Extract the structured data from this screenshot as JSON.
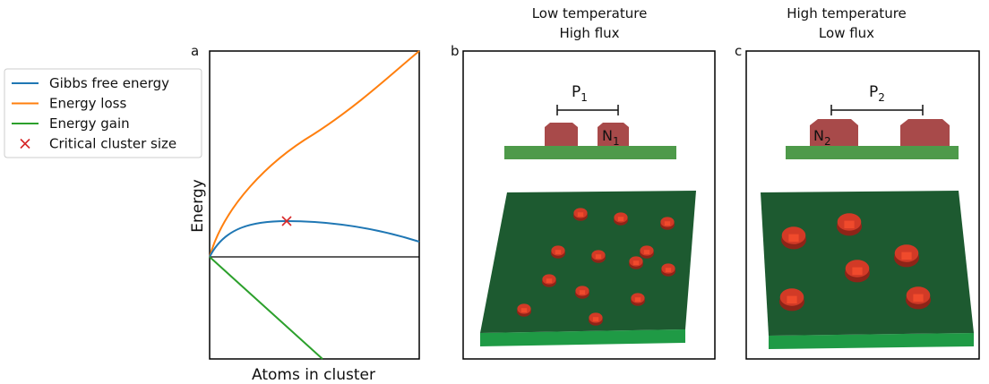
{
  "chart_data": {
    "type": "line",
    "panel_label": "a",
    "xlabel": "Atoms in cluster",
    "ylabel": "Energy",
    "series": [
      {
        "name": "Gibbs free energy",
        "color": "#1f77b4"
      },
      {
        "name": "Energy loss",
        "color": "#ff7f0e"
      },
      {
        "name": "Energy gain",
        "color": "#2ca02c"
      }
    ],
    "marker": {
      "name": "Critical cluster size",
      "color": "#d62728"
    }
  },
  "panel_b": {
    "label": "b",
    "title": [
      "Low temperature",
      "High flux"
    ],
    "spacing": {
      "main": "P",
      "sub": "1"
    },
    "island": {
      "main": "N",
      "sub": "1"
    }
  },
  "panel_c": {
    "label": "c",
    "title": [
      "High temperature",
      "Low flux"
    ],
    "spacing": {
      "main": "P",
      "sub": "2"
    },
    "island": {
      "main": "N",
      "sub": "2"
    }
  }
}
